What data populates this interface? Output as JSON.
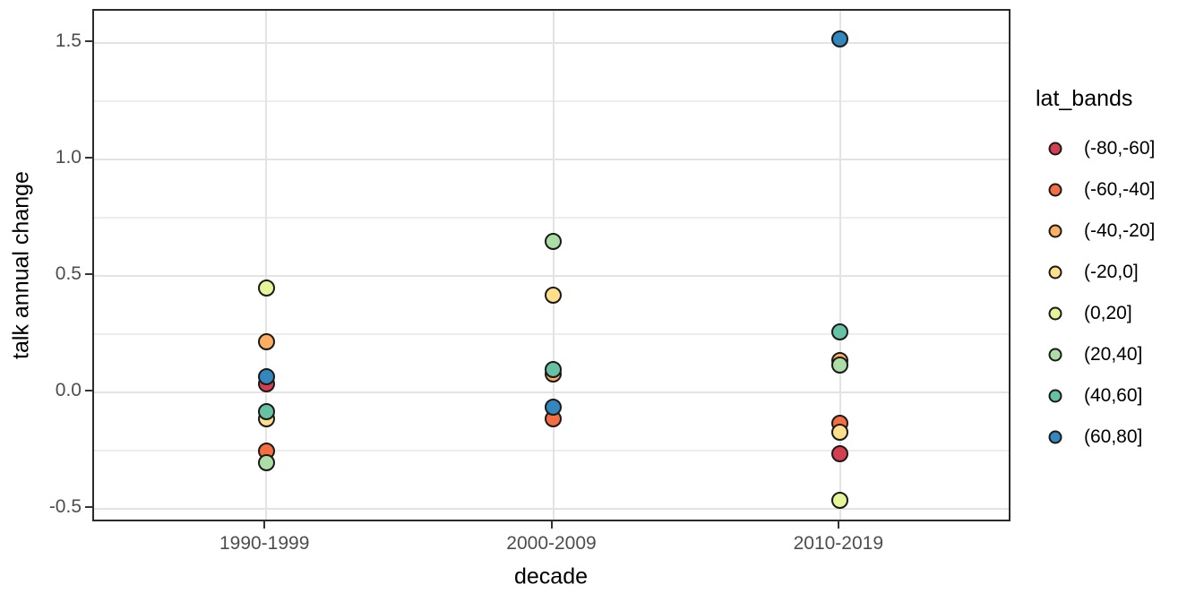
{
  "figure": {
    "background": "#FFFFFF",
    "panel_background": "#FFFFFF",
    "panel_border_color": "#2B2B2B",
    "grid_major_color": "#E3E3E3",
    "grid_minor_color": "#EDEDED",
    "axis_text_color": "#4D4D4D",
    "axis_title_color": "#000000",
    "tick_color": "#333333",
    "point_stroke_color": "#1A1A1A"
  },
  "chart_data": {
    "type": "scatter",
    "title": "",
    "xlabel": "decade",
    "ylabel": "talk annual change",
    "categories": [
      "1990-1999",
      "2000-2009",
      "2010-2019"
    ],
    "y_axis": {
      "tick_labels": [
        "1.5",
        "1.0",
        "0.5",
        "0.0",
        "-0.5"
      ],
      "tick_values": [
        1.5,
        1.0,
        0.5,
        0.0,
        -0.5
      ],
      "minor_values": [
        1.25,
        0.75,
        0.25,
        -0.25
      ],
      "range": [
        -0.56,
        1.64
      ]
    },
    "grid": true,
    "legend": {
      "title": "lat_bands",
      "position": "right"
    },
    "series": [
      {
        "name": "(-80,-60]",
        "color": "#D53E4F",
        "points": [
          {
            "x": "1990-1999",
            "y": 0.04
          },
          {
            "x": "2010-2019",
            "y": -0.26
          }
        ]
      },
      {
        "name": "(-60,-40]",
        "color": "#F46D43",
        "points": [
          {
            "x": "1990-1999",
            "y": -0.25
          },
          {
            "x": "2000-2009",
            "y": -0.11
          },
          {
            "x": "2010-2019",
            "y": -0.13
          }
        ]
      },
      {
        "name": "(-40,-20]",
        "color": "#FDAE61",
        "points": [
          {
            "x": "1990-1999",
            "y": 0.22
          },
          {
            "x": "2000-2009",
            "y": 0.08
          },
          {
            "x": "2010-2019",
            "y": 0.14
          }
        ]
      },
      {
        "name": "(-20,0]",
        "color": "#FEE08B",
        "points": [
          {
            "x": "1990-1999",
            "y": -0.11
          },
          {
            "x": "2000-2009",
            "y": 0.42
          },
          {
            "x": "2010-2019",
            "y": -0.17
          }
        ]
      },
      {
        "name": "(0,20]",
        "color": "#E6F598",
        "points": [
          {
            "x": "1990-1999",
            "y": 0.45
          },
          {
            "x": "2010-2019",
            "y": -0.46
          }
        ]
      },
      {
        "name": "(20,40]",
        "color": "#ABDDA4",
        "points": [
          {
            "x": "1990-1999",
            "y": -0.3
          },
          {
            "x": "2000-2009",
            "y": 0.65
          },
          {
            "x": "2010-2019",
            "y": 0.12
          }
        ]
      },
      {
        "name": "(40,60]",
        "color": "#66C2A5",
        "points": [
          {
            "x": "1990-1999",
            "y": -0.08
          },
          {
            "x": "2000-2009",
            "y": 0.1
          },
          {
            "x": "2010-2019",
            "y": 0.26
          }
        ]
      },
      {
        "name": "(60,80]",
        "color": "#3288BD",
        "points": [
          {
            "x": "1990-1999",
            "y": 0.07
          },
          {
            "x": "2000-2009",
            "y": -0.06
          },
          {
            "x": "2010-2019",
            "y": 1.52
          }
        ]
      }
    ]
  }
}
